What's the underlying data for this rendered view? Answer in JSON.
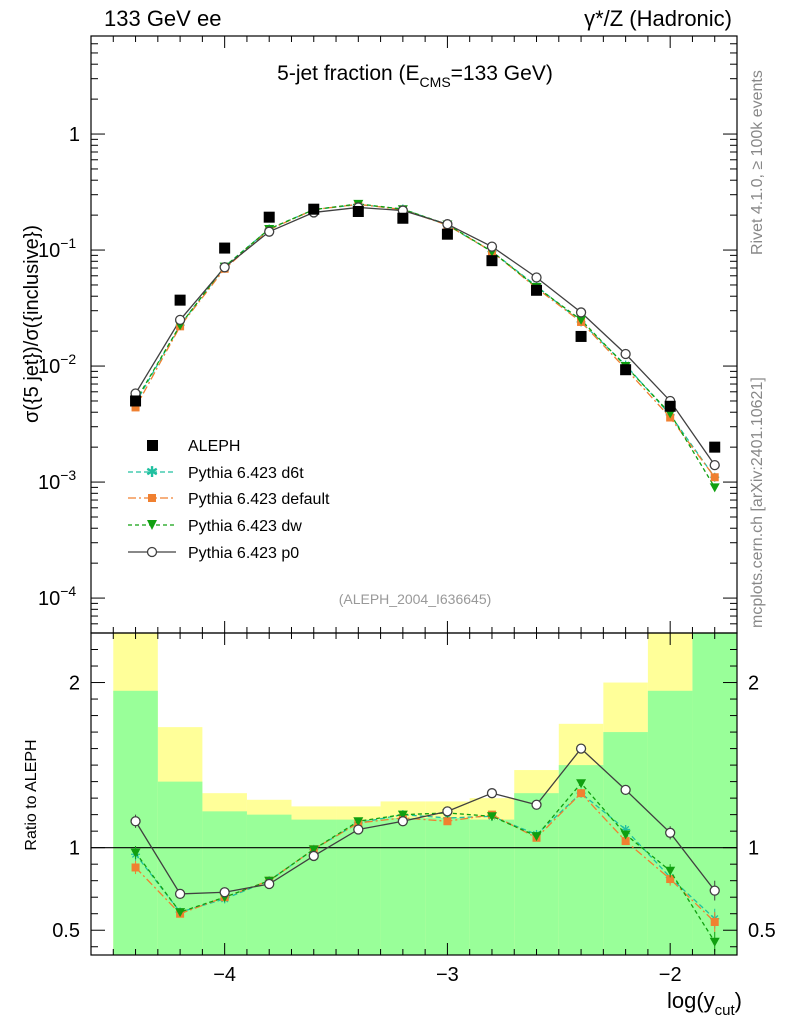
{
  "header": {
    "left": "133 GeV ee",
    "right": "γ*/Z (Hadronic)"
  },
  "side_labels": {
    "rivet": "Rivet 4.1.0, ≥ 100k events",
    "mcplots": "mcplots.cern.ch [arXiv:2401.10621]"
  },
  "watermark": "(ALEPH_2004_I636645)",
  "colors": {
    "aleph": "#000000",
    "d6t": "#20c0a0",
    "default": "#f08030",
    "dw": "#10a010",
    "p0": "#404040",
    "band_inner": "#99ff99",
    "band_outer": "#ffff99"
  },
  "chart_data": [
    {
      "type": "line",
      "title_main": "5-jet fraction (E",
      "title_sub": "CMS",
      "title_tail": "=133 GeV)",
      "xlabel_main": "log(y",
      "xlabel_sub": "cut",
      "xlabel_tail": ")",
      "ylabel": "σ({5 jet})/σ({inclusive})",
      "yscale": "log",
      "xlim": [
        -4.6,
        -1.7
      ],
      "ylim": [
        5e-05,
        7
      ],
      "ytick_labels": [
        {
          "value": 1,
          "label": "1",
          "exp": ""
        },
        {
          "value": 0.1,
          "label": "10",
          "exp": "−1"
        },
        {
          "value": 0.01,
          "label": "10",
          "exp": "−2"
        },
        {
          "value": 0.001,
          "label": "10",
          "exp": "−3"
        },
        {
          "value": 0.0001,
          "label": "10",
          "exp": "−4"
        }
      ],
      "x": [
        -4.4,
        -4.2,
        -4.0,
        -3.8,
        -3.6,
        -3.4,
        -3.2,
        -3.0,
        -2.8,
        -2.6,
        -2.4,
        -2.2,
        -2.0,
        -1.8
      ],
      "series": [
        {
          "name": "ALEPH",
          "key": "aleph",
          "marker": "square",
          "values": [
            0.005,
            0.037,
            0.104,
            0.192,
            0.225,
            0.215,
            0.188,
            0.137,
            0.081,
            0.045,
            0.018,
            0.0093,
            0.0045,
            0.002
          ]
        },
        {
          "name": "Pythia 6.423 d6t",
          "key": "d6t",
          "marker": "star",
          "dash": "5,3",
          "values": [
            0.0048,
            0.0225,
            0.072,
            0.152,
            0.223,
            0.247,
            0.226,
            0.164,
            0.097,
            0.049,
            0.024,
            0.0102,
            0.0038,
            0.0011
          ]
        },
        {
          "name": "Pythia 6.423 default",
          "key": "default",
          "marker": "filled-square",
          "dash": "8,3,2,3",
          "values": [
            0.0044,
            0.022,
            0.069,
            0.15,
            0.223,
            0.248,
            0.223,
            0.164,
            0.097,
            0.047,
            0.024,
            0.0095,
            0.0036,
            0.0011
          ]
        },
        {
          "name": "Pythia 6.423 dw",
          "key": "dw",
          "marker": "triangle-down",
          "dash": "4,3",
          "values": [
            0.005,
            0.0225,
            0.072,
            0.152,
            0.223,
            0.25,
            0.225,
            0.166,
            0.097,
            0.048,
            0.025,
            0.01,
            0.0039,
            0.0009
          ]
        },
        {
          "name": "Pythia 6.423 p0",
          "key": "p0",
          "marker": "open-circle",
          "dash": "",
          "values": [
            0.0058,
            0.025,
            0.071,
            0.144,
            0.211,
            0.233,
            0.219,
            0.167,
            0.107,
            0.058,
            0.029,
            0.0127,
            0.005,
            0.0014
          ]
        }
      ],
      "legend_position": "lower-left"
    },
    {
      "type": "line",
      "ylabel": "Ratio to ALEPH",
      "ylim": [
        0.35,
        2.3
      ],
      "ytick_labels": [
        {
          "value": 2,
          "label": "2"
        },
        {
          "value": 1,
          "label": "1"
        },
        {
          "value": 0.5,
          "label": "0.5"
        }
      ],
      "xtick_labels": [
        {
          "value": -4,
          "label": "−4"
        },
        {
          "value": -3,
          "label": "−3"
        },
        {
          "value": -2,
          "label": "−2"
        }
      ],
      "bin_edges": [
        -4.5,
        -4.3,
        -4.1,
        -3.9,
        -3.7,
        -3.5,
        -3.3,
        -3.1,
        -2.9,
        -2.7,
        -2.5,
        -2.3,
        -2.1,
        -1.9,
        -1.7
      ],
      "band_inner": [
        [
          0.35,
          1.95
        ],
        [
          0.35,
          1.4
        ],
        [
          0.35,
          1.22
        ],
        [
          0.35,
          1.2
        ],
        [
          0.35,
          1.17
        ],
        [
          0.35,
          1.17
        ],
        [
          0.35,
          1.18
        ],
        [
          0.35,
          1.18
        ],
        [
          0.35,
          1.17
        ],
        [
          0.35,
          1.33
        ],
        [
          0.35,
          1.5
        ],
        [
          0.35,
          1.7
        ],
        [
          0.35,
          1.95
        ],
        [
          0.35,
          2.3
        ]
      ],
      "band_outer": [
        [
          0.35,
          2.3
        ],
        [
          0.35,
          1.73
        ],
        [
          0.35,
          1.33
        ],
        [
          0.35,
          1.29
        ],
        [
          0.35,
          1.25
        ],
        [
          0.35,
          1.25
        ],
        [
          0.35,
          1.28
        ],
        [
          0.35,
          1.28
        ],
        [
          0.35,
          1.3
        ],
        [
          0.35,
          1.47
        ],
        [
          0.35,
          1.75
        ],
        [
          0.35,
          2.0
        ],
        [
          0.35,
          2.3
        ],
        [
          0.35,
          2.3
        ]
      ],
      "series": [
        {
          "key": "d6t",
          "marker": "star",
          "dash": "5,3",
          "values": [
            0.96,
            0.61,
            0.69,
            0.8,
            0.99,
            1.15,
            1.2,
            1.18,
            1.19,
            1.08,
            1.33,
            1.11,
            0.82,
            0.57
          ]
        },
        {
          "key": "default",
          "marker": "filled-square",
          "dash": "8,3,2,3",
          "values": [
            0.88,
            0.6,
            0.7,
            0.8,
            0.99,
            1.15,
            1.18,
            1.16,
            1.2,
            1.06,
            1.33,
            1.04,
            0.81,
            0.55
          ]
        },
        {
          "key": "dw",
          "marker": "triangle-down",
          "dash": "4,3",
          "values": [
            0.97,
            0.61,
            0.7,
            0.8,
            0.99,
            1.16,
            1.2,
            1.21,
            1.19,
            1.07,
            1.39,
            1.08,
            0.86,
            0.43
          ]
        },
        {
          "key": "p0",
          "marker": "open-circle",
          "dash": "",
          "values": [
            1.16,
            0.72,
            0.73,
            0.78,
            0.95,
            1.11,
            1.16,
            1.22,
            1.33,
            1.26,
            1.6,
            1.35,
            1.09,
            0.74
          ]
        }
      ],
      "errors": [
        0.04,
        0.01,
        0.01,
        0.01,
        0.01,
        0.01,
        0.01,
        0.01,
        0.01,
        0.01,
        0.02,
        0.02,
        0.04,
        0.06
      ]
    }
  ]
}
